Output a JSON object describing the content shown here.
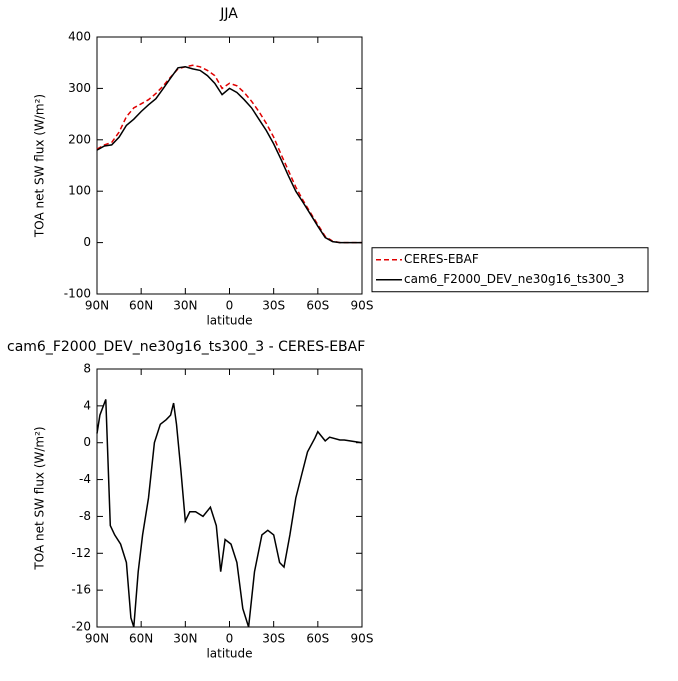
{
  "chart_data": [
    {
      "type": "line",
      "title": "JJA",
      "xlabel": "latitude",
      "ylabel": "TOA net SW flux (W/m²)",
      "xlim": [
        90,
        -90
      ],
      "xticks": [
        {
          "value": 90,
          "label": "90N"
        },
        {
          "value": 60,
          "label": "60N"
        },
        {
          "value": 30,
          "label": "30N"
        },
        0,
        {
          "value": -30,
          "label": "30S"
        },
        {
          "value": -60,
          "label": "60S"
        },
        {
          "value": -90,
          "label": "90S"
        }
      ],
      "ylim": [
        -100,
        400
      ],
      "yticks": [
        -100,
        0,
        100,
        200,
        300,
        400
      ],
      "legend": "right",
      "series": [
        {
          "name": "CERES-EBAF",
          "color": "#e00000",
          "dash": true,
          "x": [
            90,
            85,
            80,
            75,
            70,
            65,
            60,
            55,
            50,
            45,
            40,
            35,
            30,
            25,
            20,
            15,
            10,
            5,
            0,
            -5,
            -10,
            -15,
            -20,
            -25,
            -30,
            -35,
            -40,
            -45,
            -50,
            -55,
            -60,
            -65,
            -70,
            -75,
            -80,
            -85,
            -90
          ],
          "values": [
            182,
            190,
            195,
            215,
            245,
            262,
            270,
            278,
            290,
            305,
            322,
            338,
            342,
            345,
            342,
            335,
            325,
            300,
            310,
            305,
            292,
            275,
            255,
            232,
            205,
            172,
            140,
            108,
            82,
            58,
            35,
            12,
            3,
            0,
            0,
            0,
            0
          ]
        },
        {
          "name": "cam6_F2000_DEV_ne30g16_ts300_3",
          "color": "#000000",
          "dash": false,
          "x": [
            90,
            85,
            80,
            75,
            70,
            65,
            60,
            55,
            50,
            45,
            40,
            35,
            30,
            25,
            20,
            15,
            10,
            5,
            0,
            -5,
            -10,
            -15,
            -20,
            -25,
            -30,
            -35,
            -40,
            -45,
            -50,
            -55,
            -60,
            -65,
            -70,
            -75,
            -80,
            -85,
            -90
          ],
          "values": [
            180,
            188,
            190,
            205,
            228,
            240,
            255,
            268,
            280,
            300,
            320,
            340,
            342,
            338,
            335,
            325,
            310,
            288,
            300,
            292,
            278,
            262,
            240,
            218,
            192,
            162,
            130,
            100,
            78,
            55,
            32,
            10,
            2,
            0,
            0,
            0,
            0
          ]
        }
      ]
    },
    {
      "type": "line",
      "title": "cam6_F2000_DEV_ne30g16_ts300_3 - CERES-EBAF",
      "xlabel": "latitude",
      "ylabel": "TOA net SW flux (W/m²)",
      "xlim": [
        90,
        -90
      ],
      "xticks": [
        {
          "value": 90,
          "label": "90N"
        },
        {
          "value": 60,
          "label": "60N"
        },
        {
          "value": 30,
          "label": "30N"
        },
        0,
        {
          "value": -30,
          "label": "30S"
        },
        {
          "value": -60,
          "label": "60S"
        },
        {
          "value": -90,
          "label": "90S"
        }
      ],
      "ylim": [
        -20,
        8
      ],
      "yticks": [
        -20,
        -16,
        -12,
        -8,
        -4,
        0,
        4,
        8
      ],
      "series": [
        {
          "color": "#000000",
          "dash": false,
          "x": [
            90,
            88,
            84,
            81,
            78,
            74,
            70,
            67,
            65,
            62,
            59,
            55,
            51,
            47,
            43,
            40,
            38,
            36,
            33,
            30,
            27,
            23,
            18,
            13,
            9,
            6,
            3,
            -1,
            -5,
            -9,
            -13,
            -17,
            -22,
            -26,
            -30,
            -34,
            -37,
            -41,
            -45,
            -49,
            -53,
            -58,
            -60,
            -65,
            -68,
            -75,
            -78,
            -90
          ],
          "values": [
            1,
            3,
            4.7,
            -9,
            -10,
            -11,
            -13,
            -19,
            -20,
            -14,
            -10,
            -6,
            0,
            2,
            2.5,
            3,
            4.3,
            2,
            -3,
            -8.5,
            -7.5,
            -7.5,
            -8,
            -7,
            -9,
            -14,
            -10.5,
            -11,
            -13,
            -18,
            -20,
            -14,
            -10,
            -9.5,
            -10,
            -13,
            -13.5,
            -10,
            -6,
            -3.5,
            -1,
            0.5,
            1.2,
            0.2,
            0.6,
            0.3,
            0.3,
            0
          ]
        }
      ]
    }
  ]
}
